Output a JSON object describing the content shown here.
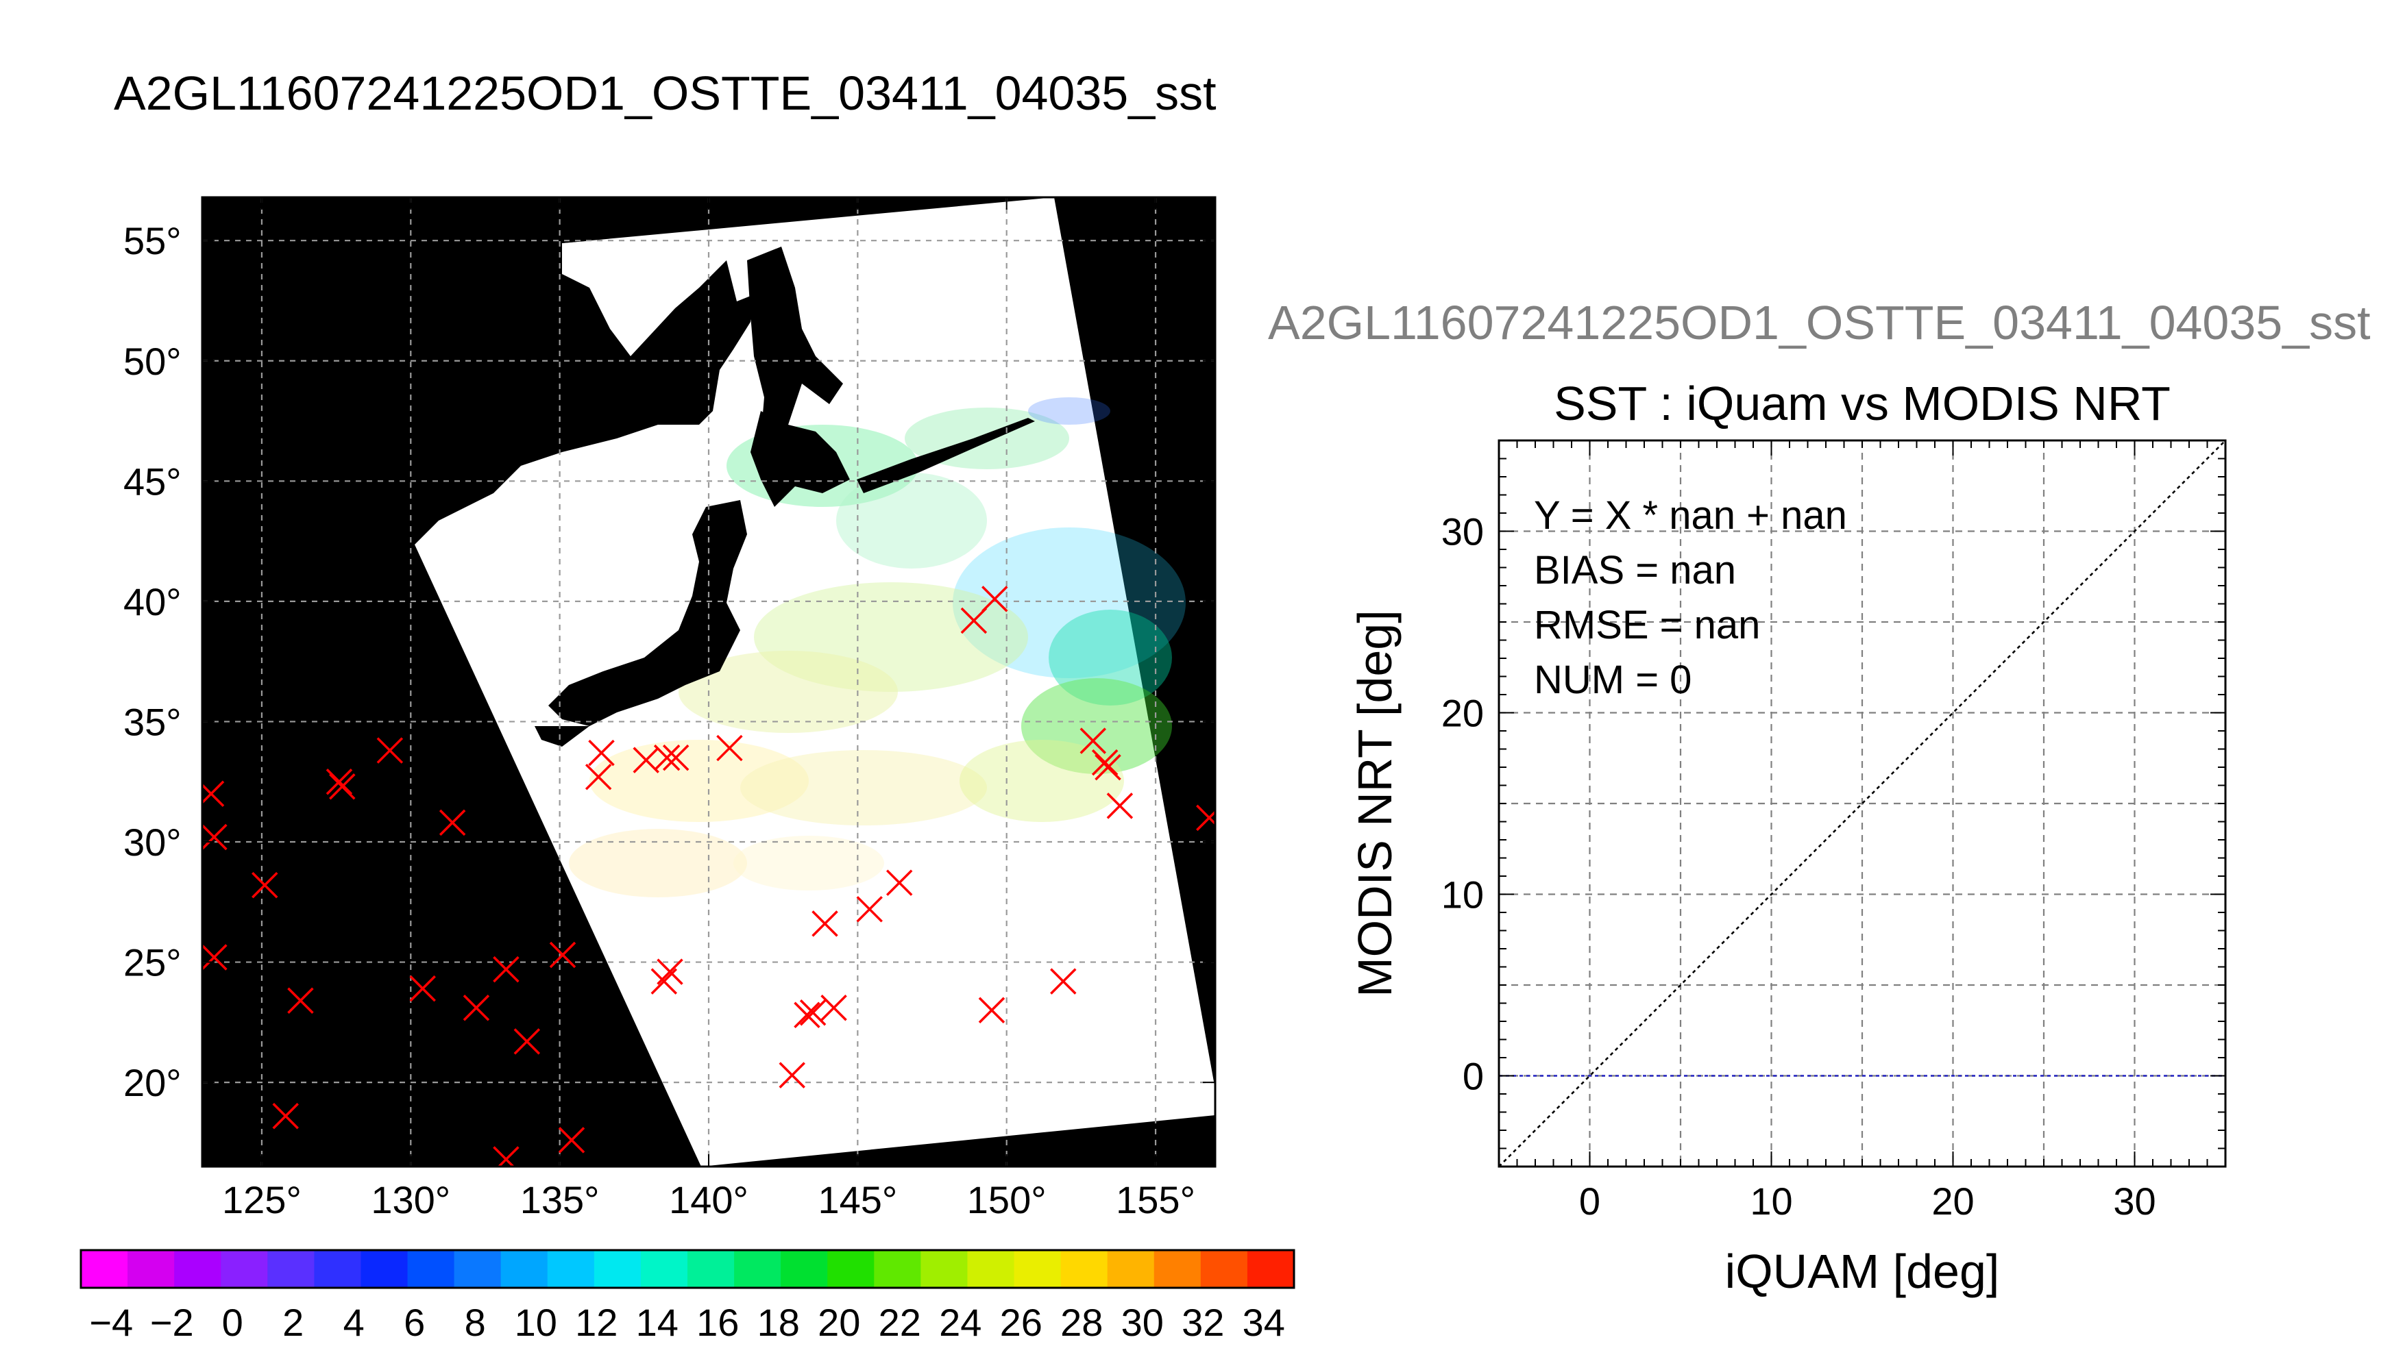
{
  "title_main": "A2GL11607241225OD1_OSTTE_03411_04035_sst",
  "title_right": "A2GL11607241225OD1_OSTTE_03411_04035_sst",
  "colors": {
    "land": "#000000",
    "no_data": "#ffffff",
    "marker": "#ff0000",
    "fit_line": "#2020c0",
    "identity_line": "#000000",
    "grid": "#7f7f7f"
  },
  "chart_data": [
    {
      "type": "map",
      "lon_ticks": [
        "125°",
        "130°",
        "135°",
        "140°",
        "145°",
        "150°",
        "155°"
      ],
      "lat_ticks": [
        "55°",
        "50°",
        "45°",
        "40°",
        "35°",
        "30°",
        "25°",
        "20°"
      ],
      "lon_tick_values": [
        125,
        130,
        135,
        140,
        145,
        150,
        155
      ],
      "lat_tick_values": [
        55,
        50,
        45,
        40,
        35,
        30,
        25,
        20
      ],
      "lon_range": [
        123,
        157
      ],
      "lat_range": [
        16.5,
        56.8
      ],
      "grid": true,
      "markers": [
        {
          "lon": 123.3,
          "lat": 32.0
        },
        {
          "lon": 123.4,
          "lat": 30.2
        },
        {
          "lon": 123.4,
          "lat": 25.2
        },
        {
          "lon": 125.1,
          "lat": 28.2
        },
        {
          "lon": 126.3,
          "lat": 23.4
        },
        {
          "lon": 125.8,
          "lat": 18.6
        },
        {
          "lon": 127.6,
          "lat": 32.5
        },
        {
          "lon": 127.7,
          "lat": 32.3
        },
        {
          "lon": 129.3,
          "lat": 33.8
        },
        {
          "lon": 130.4,
          "lat": 23.9
        },
        {
          "lon": 131.4,
          "lat": 30.8
        },
        {
          "lon": 132.2,
          "lat": 23.1
        },
        {
          "lon": 133.2,
          "lat": 24.7
        },
        {
          "lon": 133.9,
          "lat": 21.7
        },
        {
          "lon": 133.2,
          "lat": 16.8
        },
        {
          "lon": 135.1,
          "lat": 25.3
        },
        {
          "lon": 135.4,
          "lat": 17.6
        },
        {
          "lon": 136.4,
          "lat": 33.7
        },
        {
          "lon": 136.3,
          "lat": 32.7
        },
        {
          "lon": 137.9,
          "lat": 33.4
        },
        {
          "lon": 138.6,
          "lat": 33.5
        },
        {
          "lon": 138.9,
          "lat": 33.5
        },
        {
          "lon": 138.7,
          "lat": 24.6
        },
        {
          "lon": 138.5,
          "lat": 24.2
        },
        {
          "lon": 140.7,
          "lat": 33.9
        },
        {
          "lon": 142.8,
          "lat": 20.3
        },
        {
          "lon": 143.3,
          "lat": 22.8
        },
        {
          "lon": 143.5,
          "lat": 22.9
        },
        {
          "lon": 144.2,
          "lat": 23.1
        },
        {
          "lon": 143.9,
          "lat": 26.6
        },
        {
          "lon": 145.4,
          "lat": 27.2
        },
        {
          "lon": 146.4,
          "lat": 28.3
        },
        {
          "lon": 148.9,
          "lat": 39.2
        },
        {
          "lon": 149.6,
          "lat": 40.1
        },
        {
          "lon": 149.5,
          "lat": 23.0
        },
        {
          "lon": 151.9,
          "lat": 24.2
        },
        {
          "lon": 152.9,
          "lat": 34.2
        },
        {
          "lon": 153.3,
          "lat": 33.3
        },
        {
          "lon": 153.4,
          "lat": 33.1
        },
        {
          "lon": 153.8,
          "lat": 31.5
        },
        {
          "lon": 156.8,
          "lat": 31.0
        }
      ],
      "colorbar": {
        "ticks": [
          "−4",
          "−2",
          "0",
          "2",
          "4",
          "6",
          "8",
          "10",
          "12",
          "14",
          "16",
          "18",
          "20",
          "22",
          "24",
          "26",
          "28",
          "30",
          "32",
          "34"
        ],
        "range": [
          -5,
          35
        ],
        "colors": [
          "#ff00ff",
          "#d400f0",
          "#aa00ff",
          "#8a20ff",
          "#5a30ff",
          "#2f30ff",
          "#0a28ff",
          "#0050ff",
          "#0a78ff",
          "#00a6ff",
          "#00c8ff",
          "#00e8f0",
          "#00f5c8",
          "#00f098",
          "#00e860",
          "#00e030",
          "#20e000",
          "#60e800",
          "#a0ee00",
          "#d0f000",
          "#eaee00",
          "#ffd800",
          "#ffb400",
          "#ff8000",
          "#ff5000",
          "#ff2000"
        ]
      }
    },
    {
      "type": "scatter",
      "title": "SST : iQuam vs MODIS NRT",
      "xlabel": "iQUAM [deg]",
      "ylabel": "MODIS NRT [deg]",
      "xlim": [
        -5,
        35
      ],
      "ylim": [
        -5,
        35
      ],
      "x_ticks": [
        "0",
        "10",
        "20",
        "30"
      ],
      "y_ticks": [
        "0",
        "10",
        "20",
        "30"
      ],
      "x_tick_values": [
        0,
        10,
        20,
        30
      ],
      "y_tick_values": [
        0,
        10,
        20,
        30
      ],
      "grid": true,
      "points": [],
      "fit_line_y": 0,
      "stats": [
        "Y = X * nan + nan",
        "BIAS = nan",
        "RMSE = nan",
        "NUM = 0"
      ]
    }
  ]
}
